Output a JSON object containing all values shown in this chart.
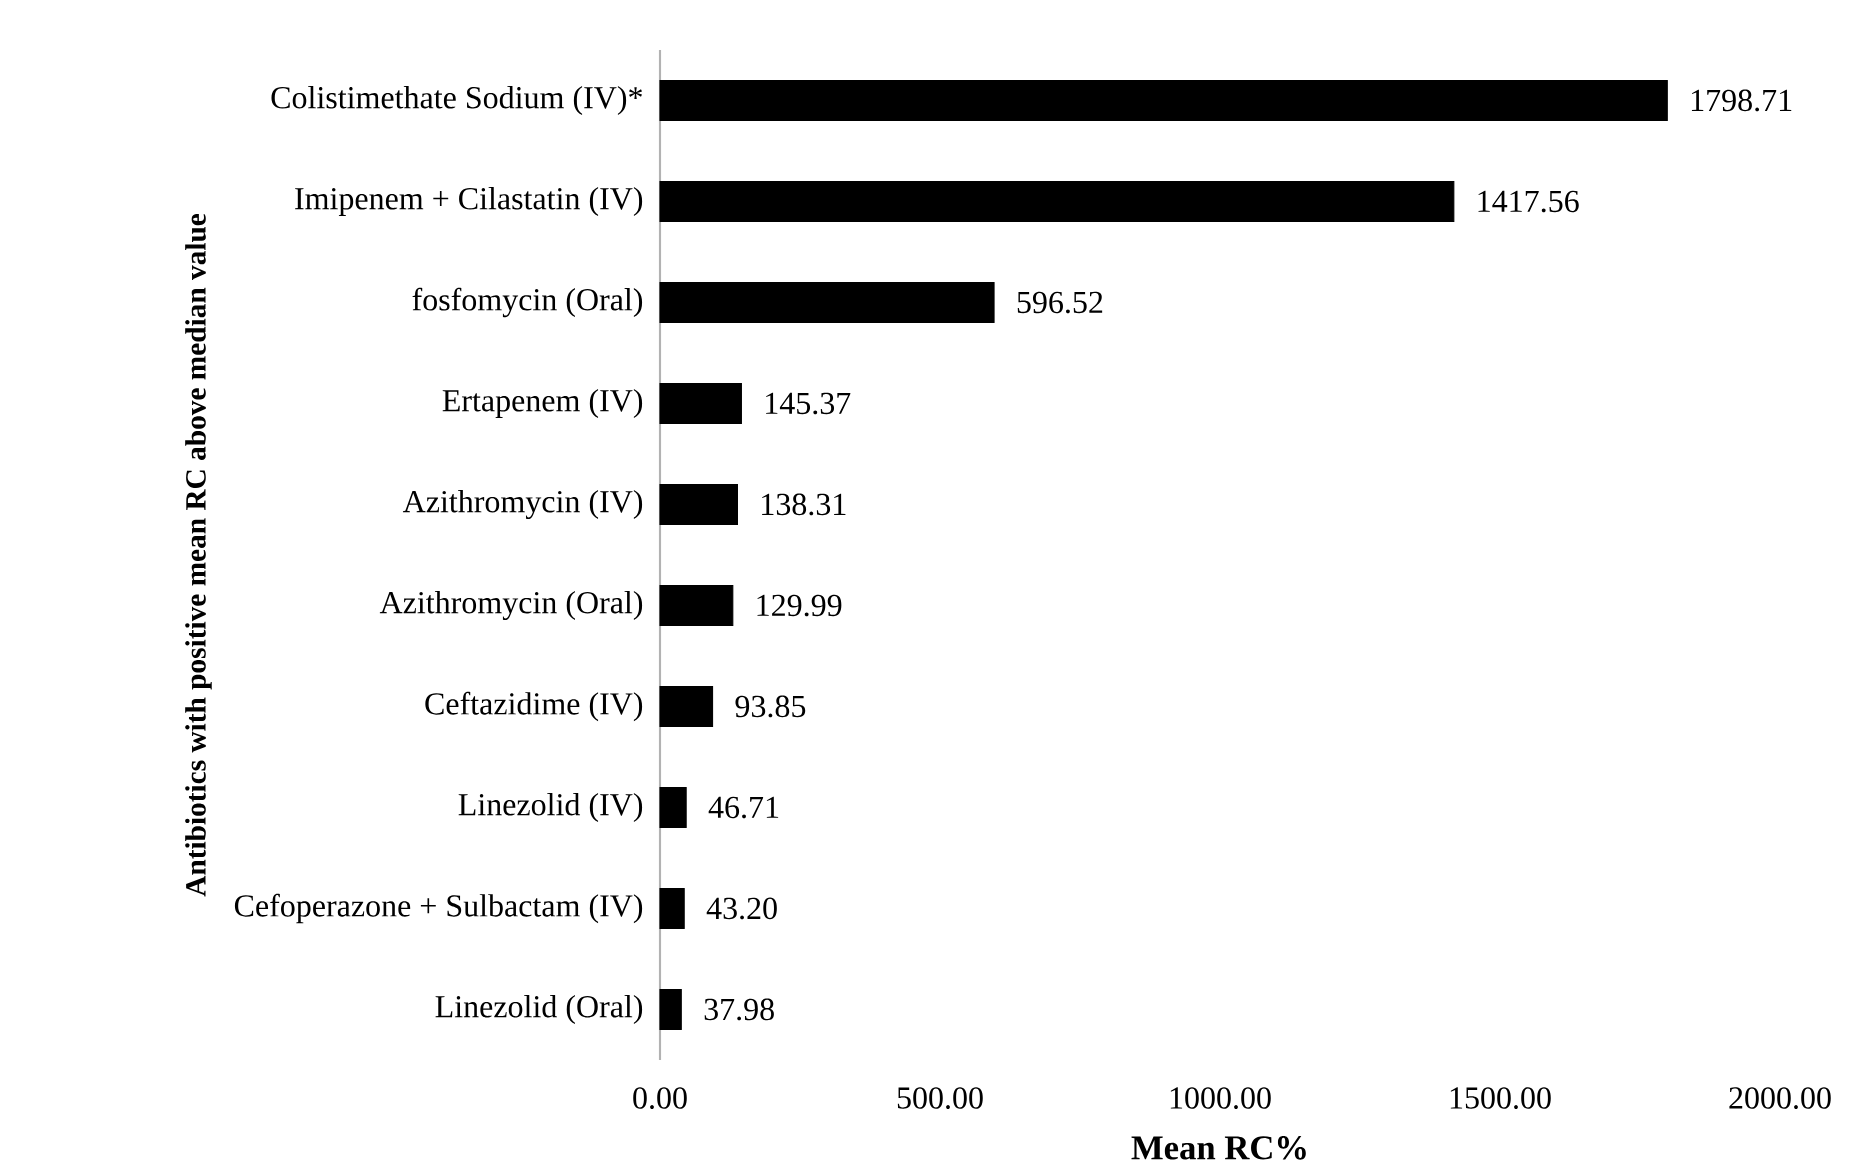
{
  "chart_data": {
    "type": "bar",
    "orientation": "horizontal",
    "xlabel": "Mean RC%",
    "ylabel": "Antibiotics with positive mean RC above median value",
    "categories": [
      "Colistimethate Sodium (IV)*",
      "Imipenem + Cilastatin (IV)",
      "fosfomycin (Oral)",
      "Ertapenem (IV)",
      "Azithromycin (IV)",
      "Azithromycin (Oral)",
      "Ceftazidime (IV)",
      "Linezolid (IV)",
      "Cefoperazone + Sulbactam (IV)",
      "Linezolid (Oral)"
    ],
    "values": [
      1798.71,
      1417.56,
      596.52,
      145.37,
      138.31,
      129.99,
      93.85,
      46.71,
      43.2,
      37.98
    ],
    "value_labels": [
      "1798.71",
      "1417.56",
      "596.52",
      "145.37",
      "138.31",
      "129.99",
      "93.85",
      "46.71",
      "43.20",
      "37.98"
    ],
    "color": "#000000",
    "xlim": [
      0,
      2000
    ],
    "xticks": [
      {
        "value": 0,
        "label": "0.00"
      },
      {
        "value": 500,
        "label": "500.00"
      },
      {
        "value": 1000,
        "label": "1000.00"
      },
      {
        "value": 1500,
        "label": "1500.00"
      },
      {
        "value": 2000,
        "label": "2000.00"
      }
    ]
  }
}
